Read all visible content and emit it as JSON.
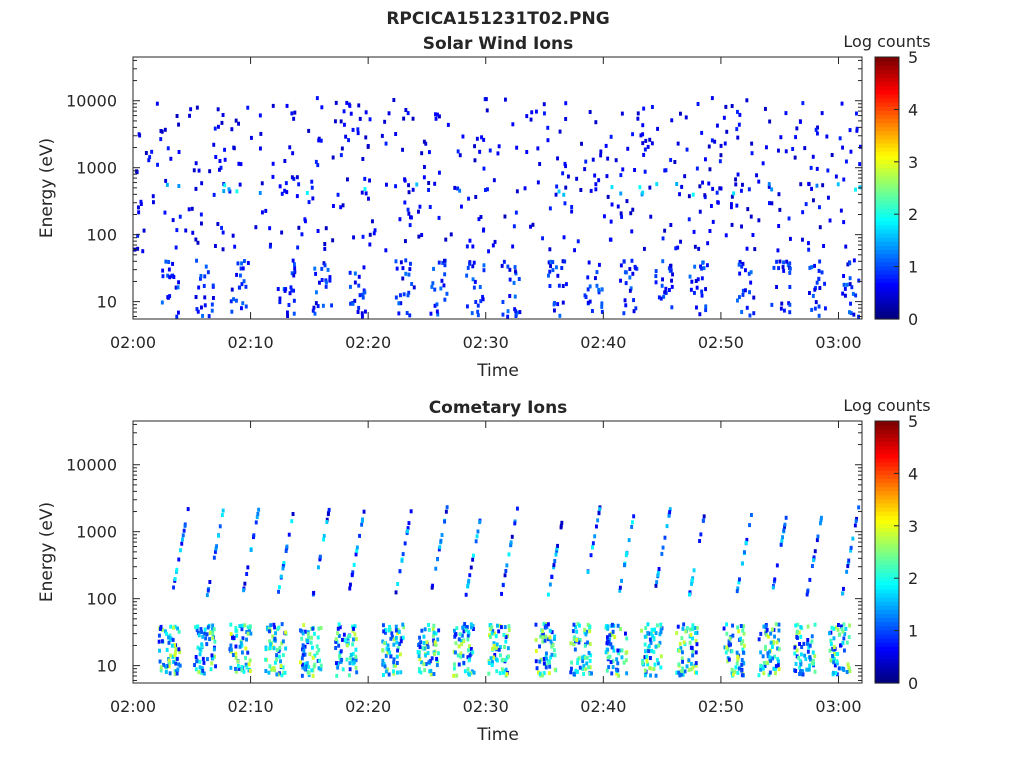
{
  "figure": {
    "title": "RPCICA151231T02.PNG"
  },
  "colorbar": {
    "label": "Log counts",
    "ticks": [
      "0",
      "1",
      "2",
      "3",
      "4",
      "5"
    ],
    "range": [
      0,
      5
    ],
    "colormap": "jet"
  },
  "chart_data": [
    {
      "type": "heatmap",
      "title": "Solar Wind Ions",
      "xlabel": "Time",
      "ylabel": "Energy (eV)",
      "xlim": [
        "02:00",
        "03:02"
      ],
      "ylim": [
        5.5,
        45000
      ],
      "yscale": "log",
      "xticks": [
        "02:00",
        "02:10",
        "02:20",
        "02:30",
        "02:40",
        "02:50",
        "03:00"
      ],
      "yticks": [
        "10",
        "100",
        "1000",
        "10000"
      ],
      "bands": [
        {
          "label": "sparse high-energy counts",
          "energy_range_eV": [
            60,
            10000
          ],
          "log_counts": [
            0,
            0.5
          ]
        },
        {
          "label": "enhanced band",
          "energy_range_eV": [
            400,
            650
          ],
          "log_counts": [
            0.5,
            2
          ]
        },
        {
          "label": "low-energy periodic bursts",
          "energy_range_eV": [
            6,
            45
          ],
          "log_counts": [
            0,
            1
          ]
        }
      ],
      "burst_times": [
        "02:03",
        "02:06",
        "02:09",
        "02:13",
        "02:16",
        "02:19",
        "02:23",
        "02:26",
        "02:29",
        "02:32",
        "02:36",
        "02:39",
        "02:42",
        "02:45",
        "02:48",
        "02:52",
        "02:55",
        "02:58",
        "03:01"
      ]
    },
    {
      "type": "heatmap",
      "title": "Cometary Ions",
      "xlabel": "Time",
      "ylabel": "Energy (eV)",
      "xlim": [
        "02:00",
        "03:02"
      ],
      "ylim": [
        5.5,
        45000
      ],
      "yscale": "log",
      "xticks": [
        "02:00",
        "02:10",
        "02:20",
        "02:30",
        "02:40",
        "02:50",
        "03:00"
      ],
      "yticks": [
        "10",
        "100",
        "1000",
        "10000"
      ],
      "bands": [
        {
          "label": "low-energy cometary blocks",
          "energy_range_eV": [
            8,
            45
          ],
          "log_counts": [
            0.5,
            3
          ]
        },
        {
          "label": "dispersed arcs",
          "energy_range_eV": [
            100,
            3000
          ],
          "log_counts": [
            0,
            2
          ]
        }
      ],
      "burst_times": [
        "02:03",
        "02:06",
        "02:09",
        "02:12",
        "02:15",
        "02:18",
        "02:22",
        "02:25",
        "02:28",
        "02:31",
        "02:35",
        "02:38",
        "02:41",
        "02:44",
        "02:47",
        "02:51",
        "02:54",
        "02:57",
        "03:00"
      ]
    }
  ]
}
